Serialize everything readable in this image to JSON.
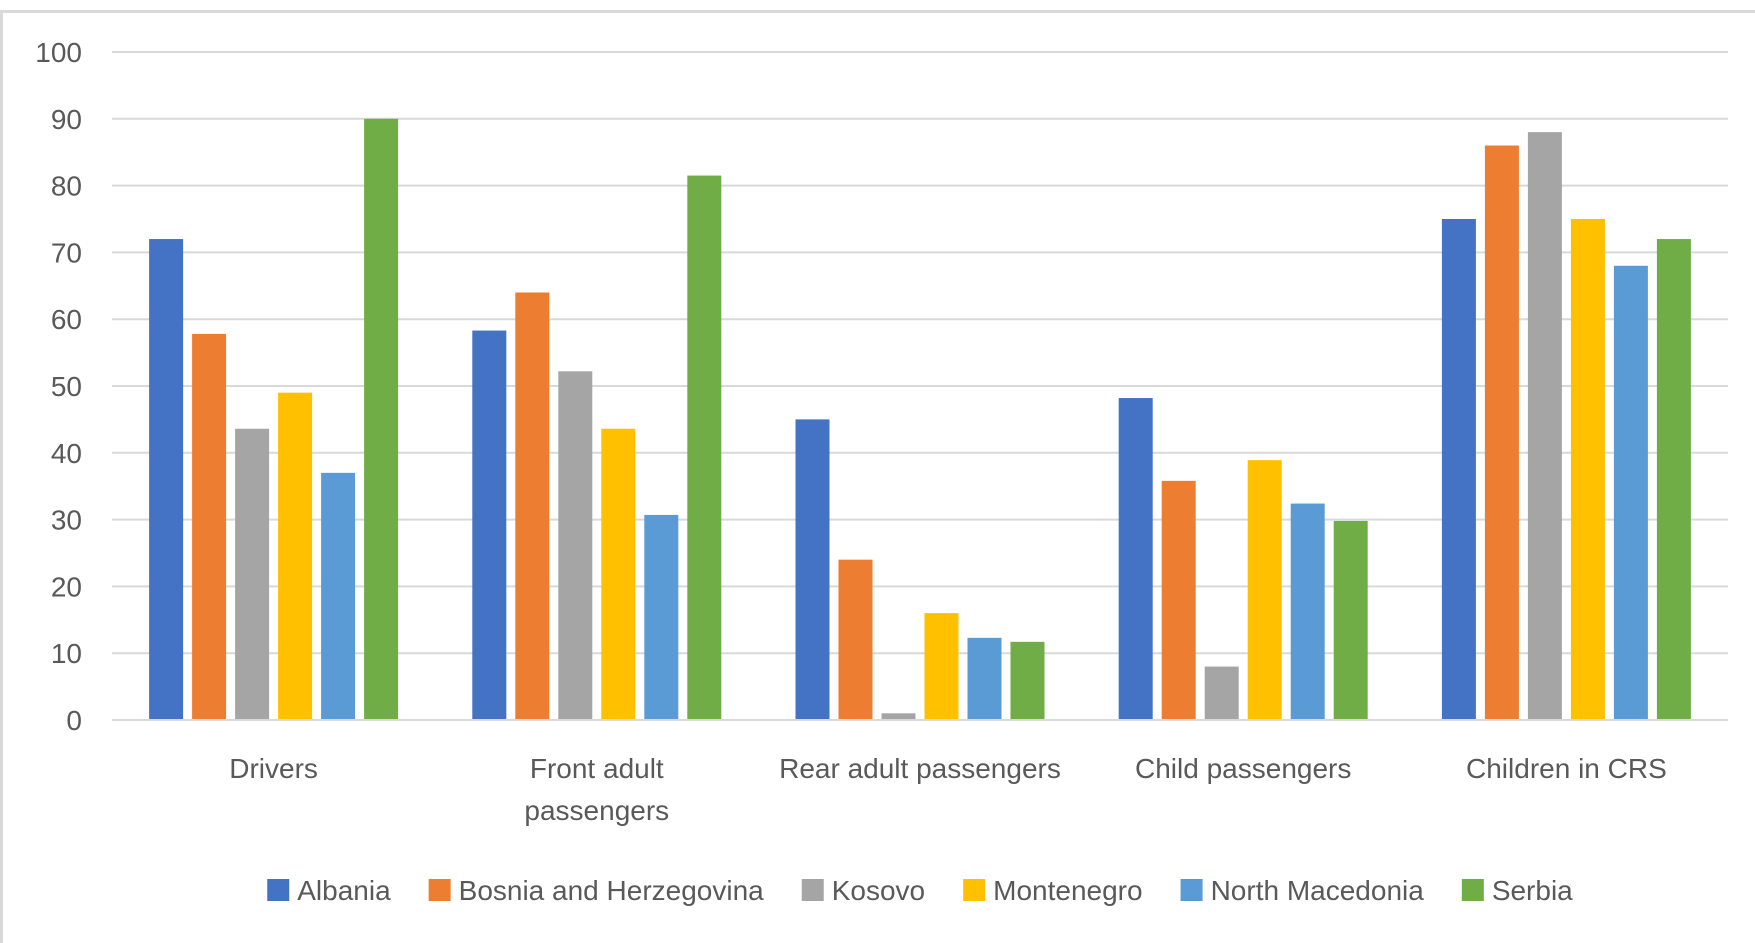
{
  "chart_data": {
    "type": "bar",
    "title": "",
    "xlabel": "",
    "ylabel": "",
    "ylim": [
      0,
      100
    ],
    "yticks": [
      0,
      10,
      20,
      30,
      40,
      50,
      60,
      70,
      80,
      90,
      100
    ],
    "grid": true,
    "legend_position": "bottom",
    "categories": [
      [
        "Drivers"
      ],
      [
        "Front adult",
        "passengers"
      ],
      [
        "Rear adult passengers"
      ],
      [
        "Child passengers"
      ],
      [
        "Children in CRS"
      ]
    ],
    "series": [
      {
        "name": "Albania",
        "color": "#4472c4",
        "values": [
          72,
          58.3,
          45,
          48.2,
          75
        ]
      },
      {
        "name": "Bosnia and Herzegovina",
        "color": "#ed7d31",
        "values": [
          57.8,
          64,
          24,
          35.8,
          86
        ]
      },
      {
        "name": "Kosovo",
        "color": "#a5a5a5",
        "values": [
          43.6,
          52.2,
          1,
          8,
          88
        ]
      },
      {
        "name": "Montenegro",
        "color": "#ffc000",
        "values": [
          49,
          43.6,
          16,
          38.9,
          75
        ]
      },
      {
        "name": "North Macedonia",
        "color": "#5b9bd5",
        "values": [
          37,
          30.7,
          12.3,
          32.4,
          68
        ]
      },
      {
        "name": "Serbia",
        "color": "#70ad47",
        "values": [
          90,
          81.5,
          11.7,
          29.8,
          72
        ]
      }
    ]
  }
}
